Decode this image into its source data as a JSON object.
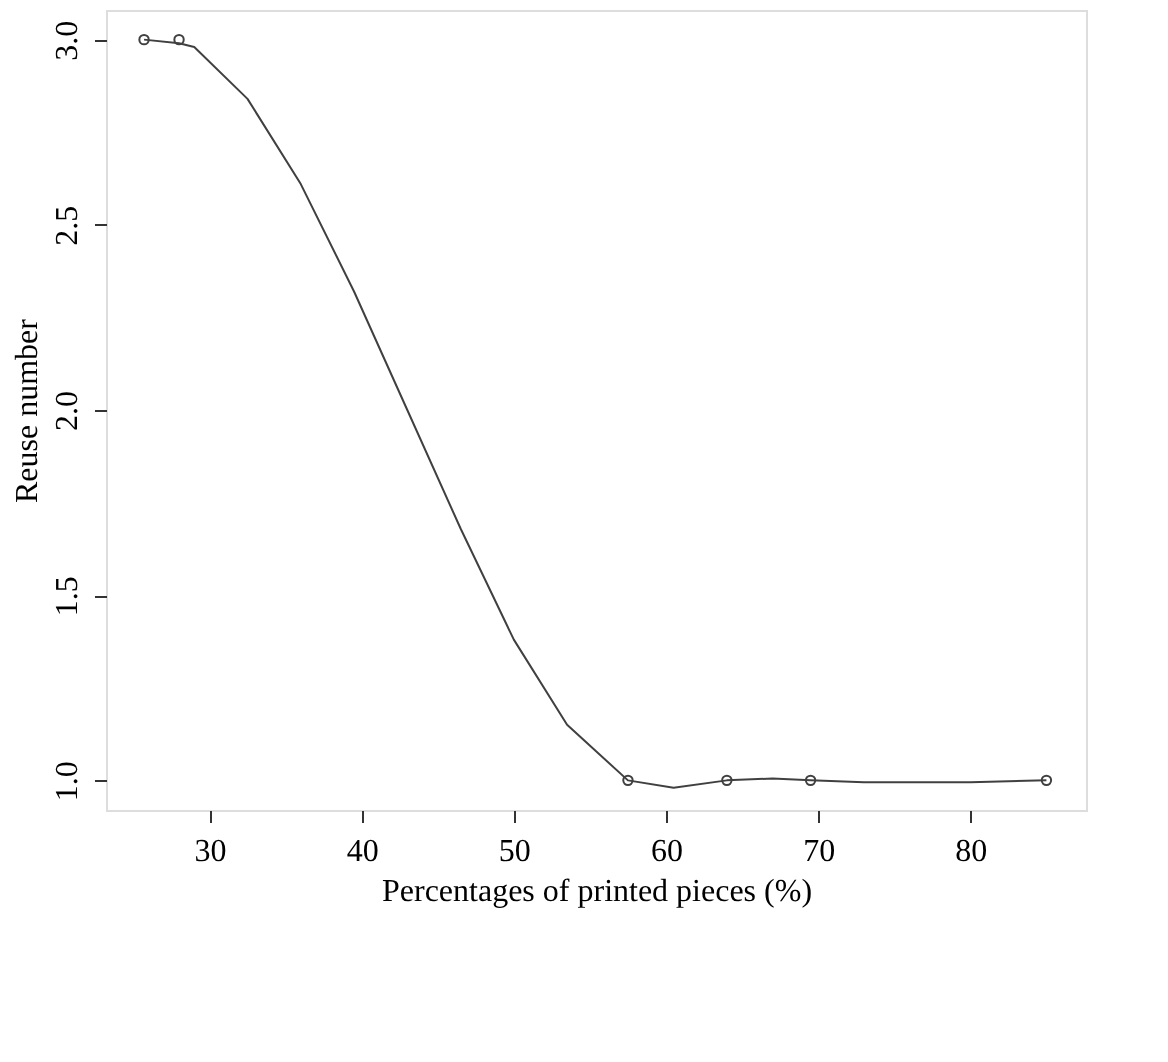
{
  "chart_data": {
    "type": "scatter",
    "xlabel": "Percentages of printed pieces (%)",
    "ylabel": "Reuse number",
    "xlim": [
      23.2,
      87.6
    ],
    "ylim": [
      0.92,
      3.08
    ],
    "xticks": [
      30,
      40,
      50,
      60,
      70,
      80
    ],
    "yticks": [
      {
        "value": 1,
        "label": "1.0"
      },
      1.5,
      {
        "value": 2,
        "label": "2.0"
      },
      2.5,
      {
        "value": 3,
        "label": "3.0"
      }
    ],
    "grid": false,
    "series": [
      {
        "type": "line",
        "color": "#404040",
        "line_style": "solid",
        "marker": "none",
        "x": [
          25.7,
          28,
          29,
          32.5,
          36,
          39.5,
          43,
          46.5,
          50,
          53.5,
          57.5,
          60.5,
          64,
          67,
          69.5,
          73,
          80,
          85
        ],
        "values": [
          3.0,
          2.99,
          2.98,
          2.84,
          2.61,
          2.32,
          2.0,
          1.68,
          1.38,
          1.15,
          1.0,
          0.98,
          1.0,
          1.005,
          1.0,
          0.995,
          0.995,
          1.0
        ]
      },
      {
        "color": "#404040",
        "marker": "circle",
        "x": [
          25.7,
          28,
          57.5,
          64,
          69.5,
          85
        ],
        "values": [
          3,
          3,
          1,
          1,
          1,
          1
        ]
      }
    ]
  }
}
